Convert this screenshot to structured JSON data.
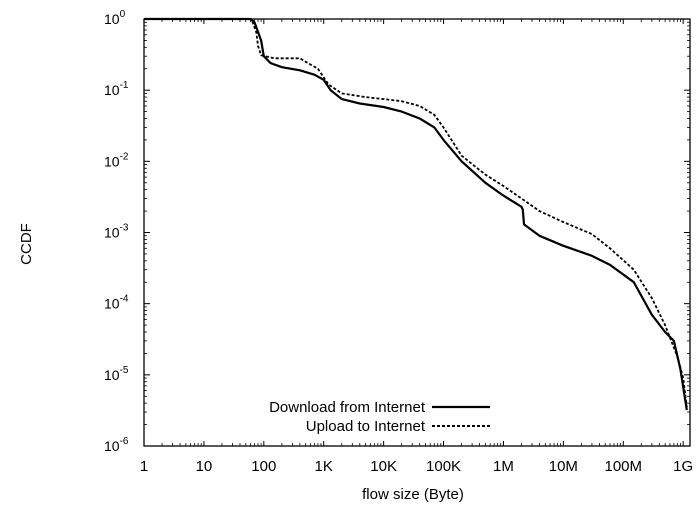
{
  "chart_data": {
    "type": "line",
    "title": "",
    "xlabel": "flow size (Byte)",
    "ylabel": "CCDF",
    "x_scale": "log",
    "y_scale": "log",
    "xlim": [
      1,
      1300000000
    ],
    "ylim": [
      1e-06,
      1
    ],
    "grid": false,
    "legend_position": "bottom-left",
    "x_ticks": [
      {
        "value": 1,
        "label": "1"
      },
      {
        "value": 10,
        "label": "10"
      },
      {
        "value": 100,
        "label": "100"
      },
      {
        "value": 1000,
        "label": "1K"
      },
      {
        "value": 10000,
        "label": "10K"
      },
      {
        "value": 100000,
        "label": "100K"
      },
      {
        "value": 1000000,
        "label": "1M"
      },
      {
        "value": 10000000,
        "label": "10M"
      },
      {
        "value": 100000000,
        "label": "100M"
      },
      {
        "value": 1000000000,
        "label": "1G"
      }
    ],
    "y_ticks": [
      {
        "value": 1,
        "base": "10",
        "exp": "0"
      },
      {
        "value": 0.1,
        "base": "10",
        "exp": "-1"
      },
      {
        "value": 0.01,
        "base": "10",
        "exp": "-2"
      },
      {
        "value": 0.001,
        "base": "10",
        "exp": "-3"
      },
      {
        "value": 0.0001,
        "base": "10",
        "exp": "-4"
      },
      {
        "value": 1e-05,
        "base": "10",
        "exp": "-5"
      },
      {
        "value": 1e-06,
        "base": "10",
        "exp": "-6"
      }
    ],
    "series": [
      {
        "name": "Download from Internet",
        "style": "solid",
        "color": "#000000",
        "points": [
          [
            1,
            1
          ],
          [
            60,
            1
          ],
          [
            70,
            0.9
          ],
          [
            90,
            0.5
          ],
          [
            100,
            0.3
          ],
          [
            130,
            0.24
          ],
          [
            200,
            0.21
          ],
          [
            400,
            0.19
          ],
          [
            700,
            0.165
          ],
          [
            1000,
            0.14
          ],
          [
            1300,
            0.1
          ],
          [
            2000,
            0.075
          ],
          [
            4000,
            0.065
          ],
          [
            10000,
            0.058
          ],
          [
            20000,
            0.05
          ],
          [
            40000,
            0.04
          ],
          [
            70000,
            0.03
          ],
          [
            100000,
            0.02
          ],
          [
            200000,
            0.01
          ],
          [
            500000,
            0.005
          ],
          [
            1000000,
            0.0033
          ],
          [
            2000000,
            0.0023
          ],
          [
            2100000,
            0.0021
          ],
          [
            2200000,
            0.0013
          ],
          [
            4000000,
            0.0009
          ],
          [
            10000000,
            0.00065
          ],
          [
            30000000,
            0.00047
          ],
          [
            60000000,
            0.00035
          ],
          [
            150000000,
            0.0002
          ],
          [
            300000000,
            7e-05
          ],
          [
            500000000,
            4e-05
          ],
          [
            700000000,
            3e-05
          ],
          [
            900000000,
            1.2e-05
          ],
          [
            1150000000,
            3.2e-06
          ]
        ]
      },
      {
        "name": "Upload to Internet",
        "style": "dashed",
        "color": "#000000",
        "points": [
          [
            1,
            1
          ],
          [
            62,
            1
          ],
          [
            75,
            0.65
          ],
          [
            80,
            0.42
          ],
          [
            90,
            0.31
          ],
          [
            150,
            0.28
          ],
          [
            400,
            0.28
          ],
          [
            500,
            0.25
          ],
          [
            800,
            0.2
          ],
          [
            1200,
            0.12
          ],
          [
            2000,
            0.09
          ],
          [
            5000,
            0.08
          ],
          [
            10000,
            0.075
          ],
          [
            20000,
            0.07
          ],
          [
            40000,
            0.06
          ],
          [
            70000,
            0.045
          ],
          [
            100000,
            0.03
          ],
          [
            200000,
            0.012
          ],
          [
            500000,
            0.0065
          ],
          [
            1000000,
            0.0045
          ],
          [
            2000000,
            0.003
          ],
          [
            4000000,
            0.002
          ],
          [
            10000000,
            0.0014
          ],
          [
            30000000,
            0.00095
          ],
          [
            60000000,
            0.0006
          ],
          [
            150000000,
            0.0003
          ],
          [
            300000000,
            0.00012
          ],
          [
            500000000,
            5e-05
          ],
          [
            800000000,
            1.8e-05
          ],
          [
            1000000000,
            9e-06
          ],
          [
            1150000000,
            3.5e-06
          ]
        ]
      }
    ]
  }
}
